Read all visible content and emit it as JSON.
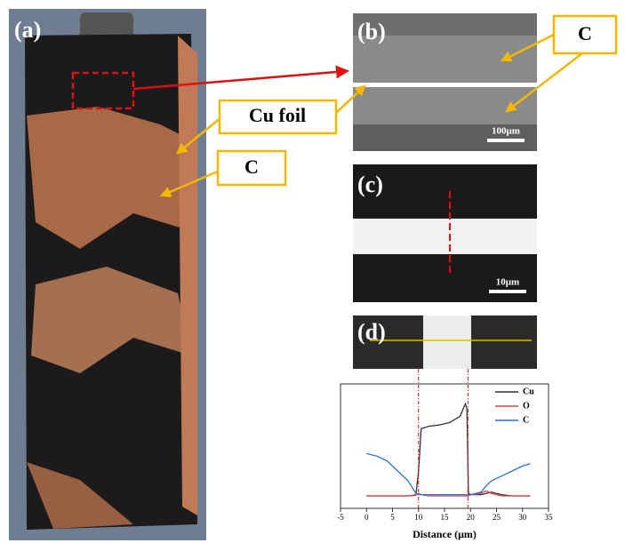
{
  "panels": {
    "a": {
      "label": "(a)",
      "callouts": [
        "Cu foil",
        "C"
      ]
    },
    "b": {
      "label": "(b)",
      "callout": "C",
      "scale_bar": "100μm"
    },
    "c": {
      "label": "(c)",
      "scale_bar": "10μm"
    },
    "d": {
      "label": "(d)"
    }
  },
  "chart_data": {
    "type": "line",
    "x_label": "Distance (μm)",
    "x": [
      0,
      2,
      4,
      6,
      8,
      9.5,
      10,
      10.5,
      12,
      14,
      16,
      18,
      19,
      19.3,
      19.6,
      20,
      22,
      23,
      24,
      26,
      28,
      30,
      31.5
    ],
    "series": [
      {
        "name": "Cu",
        "color": "#333333",
        "values": [
          10,
          10,
          10,
          10,
          10,
          10.5,
          30,
          64,
          66,
          67,
          69,
          74,
          84,
          80,
          12,
          11,
          11,
          12,
          13,
          11,
          10,
          10,
          10
        ]
      },
      {
        "name": "O",
        "color": "#e0443c",
        "values": [
          10,
          10,
          10,
          10,
          10,
          11,
          12,
          11,
          10,
          10,
          10,
          10,
          10,
          10,
          10,
          11,
          12,
          14,
          12,
          10,
          10,
          10,
          10
        ]
      },
      {
        "name": "C",
        "color": "#2a6fdb",
        "values": [
          44,
          42,
          38,
          30,
          22,
          12,
          11,
          11,
          11,
          11,
          11,
          11,
          11,
          11,
          11,
          11,
          13,
          18,
          22,
          26,
          30,
          34,
          36
        ]
      }
    ],
    "vlines": [
      10,
      19.5
    ],
    "xlim": [
      -5,
      35
    ],
    "xticks": [
      -5,
      0,
      5,
      10,
      15,
      20,
      25,
      30,
      35
    ],
    "ylim": [
      0,
      100
    ]
  }
}
